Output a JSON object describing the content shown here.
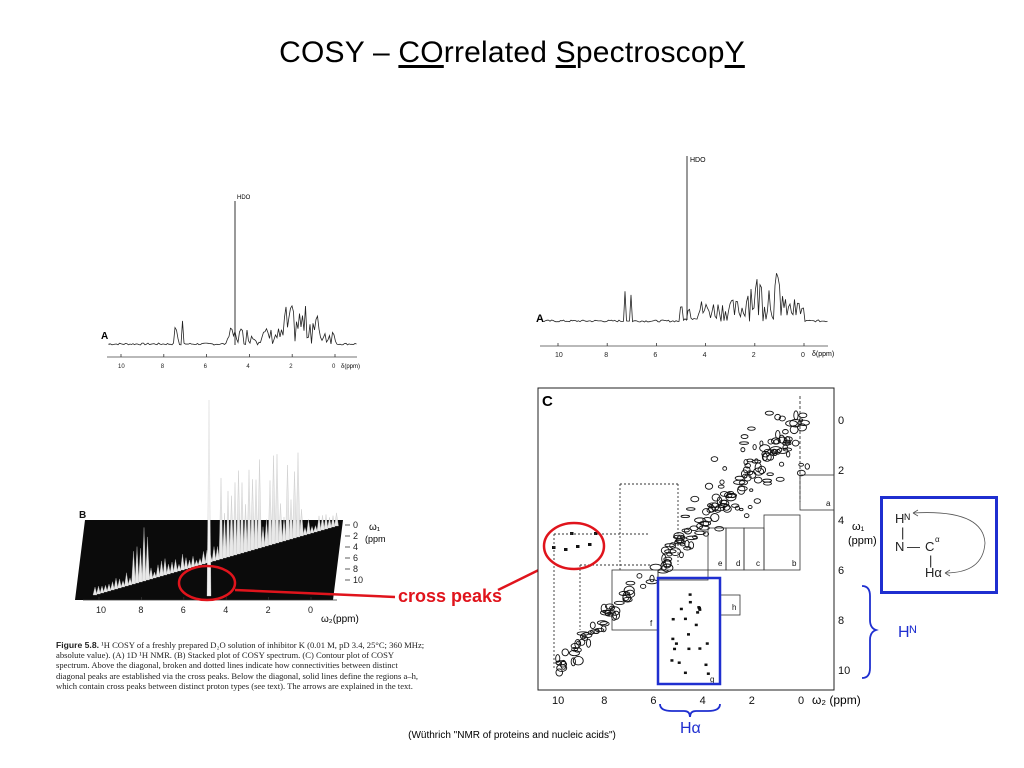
{
  "slide": {
    "title_parts": [
      "COSY – ",
      "CO",
      "rrelated ",
      "S",
      "pectroscop",
      "Y"
    ],
    "source": "(Wüthrich \"NMR of proteins and nucleic acids\")"
  },
  "panel_a_left": {
    "label": "A",
    "peak_label": "HDO",
    "axis_ticks": [
      "10",
      "8",
      "6",
      "4",
      "2",
      "0"
    ],
    "axis_unit": "δ(ppm)"
  },
  "panel_b": {
    "label": "B",
    "axis_ticks": [
      "10",
      "8",
      "6",
      "4",
      "2",
      "0"
    ],
    "axis_unit": "ω₂(ppm)",
    "w1_ticks": [
      "0",
      "2",
      "4",
      "6",
      "8",
      "10"
    ],
    "w1_label": "ω₁",
    "w1_unit": "(ppm)"
  },
  "panel_a_right": {
    "label": "A",
    "peak_label": "HDO",
    "axis_ticks": [
      "10",
      "8",
      "6",
      "4",
      "2",
      "0"
    ],
    "axis_unit": "δ(ppm)"
  },
  "panel_c": {
    "label": "C",
    "x_ticks": [
      "10",
      "8",
      "6",
      "4",
      "2",
      "0"
    ],
    "x_unit": "ω₂ (ppm)",
    "y_ticks": [
      "0",
      "2",
      "4",
      "6",
      "8",
      "10"
    ],
    "y_label": "ω₁",
    "y_unit": "(ppm)",
    "region_labels": [
      "a",
      "b",
      "c",
      "d",
      "e",
      "f",
      "g",
      "h"
    ]
  },
  "annotations": {
    "cross_peaks": "cross peaks",
    "hn": "Hᴺ",
    "ha": "Hα",
    "colors": {
      "red": "#e0141c",
      "blue": "#1f2fd0"
    }
  },
  "inset": {
    "hn": "Hᴺ",
    "n": "N",
    "c": "C",
    "ca_sup": "α",
    "ha": "Hα"
  },
  "caption": {
    "figure_label": "Figure 5.8.",
    "text": "¹H COSY of a freshly prepared D₂O solution of inhibitor K (0.01 M, pD 3.4, 25°C; 360 MHz; absolute value). (A) 1D ¹H NMR. (B) Stacked plot of COSY spectrum. (C) Contour plot of COSY spectrum. Above the diagonal, broken and dotted lines indicate how connectivities between distinct diagonal peaks are established via the cross peaks. Below the diagonal, solid lines define the regions a–h, which contain cross peaks between distinct proton types (see text). The arrows are explained in the text."
  }
}
